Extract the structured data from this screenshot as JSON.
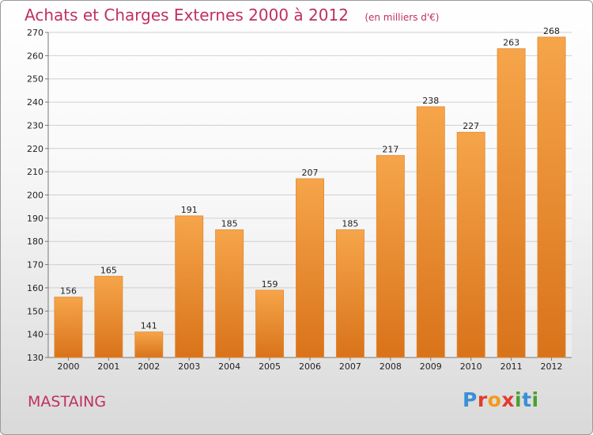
{
  "title": "Achats et Charges Externes 2000 à 2012",
  "unit_note": "(en milliers d'€)",
  "commune": "MASTAING",
  "brand": {
    "letters": [
      "P",
      "r",
      "o",
      "x",
      "i",
      "t",
      "i"
    ],
    "colors": [
      "#3a8fd6",
      "#e33b2f",
      "#f39a1a",
      "#e33b2f",
      "#4aa02c",
      "#3a8fd6",
      "#4aa02c"
    ]
  },
  "colors": {
    "title": "#c0305f",
    "bar_light": "#f6a54a",
    "bar_dark": "#d9731a"
  },
  "chart_data": {
    "type": "bar",
    "categories": [
      "2000",
      "2001",
      "2002",
      "2003",
      "2004",
      "2005",
      "2006",
      "2007",
      "2008",
      "2009",
      "2010",
      "2011",
      "2012"
    ],
    "values": [
      156,
      165,
      141,
      191,
      185,
      159,
      207,
      185,
      217,
      238,
      227,
      263,
      268
    ],
    "ylim": [
      130,
      270
    ],
    "yticks": [
      130,
      140,
      150,
      160,
      170,
      180,
      190,
      200,
      210,
      220,
      230,
      240,
      250,
      260,
      270
    ],
    "grid": true,
    "data_labels": true
  }
}
